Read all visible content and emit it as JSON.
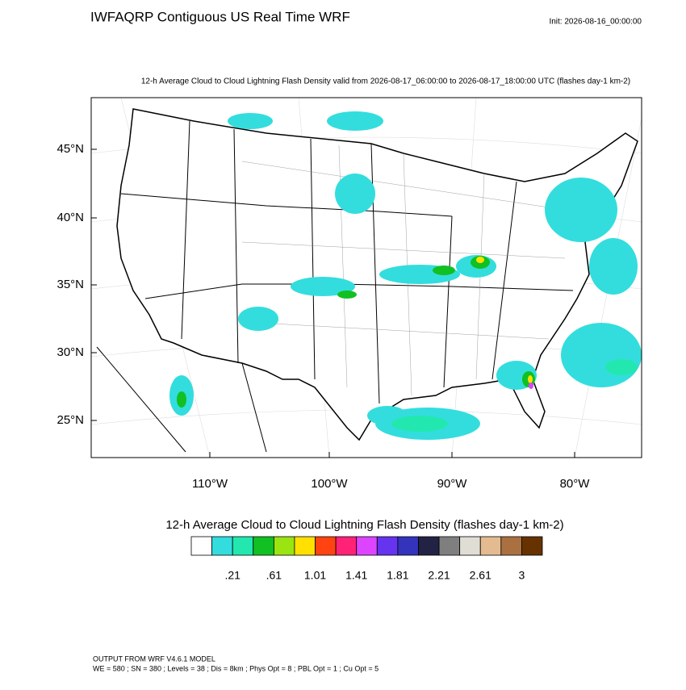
{
  "header": {
    "title": "IWFAQRP Contiguous US Real Time WRF",
    "init": "Init: 2026-08-16_00:00:00"
  },
  "map": {
    "subtitle": "12-h Average Cloud to Cloud Lightning Flash Density valid from 2026-08-17_06:00:00 to 2026-08-17_18:00:00 UTC   (flashes day-1 km-2)",
    "lat_labels": [
      "45°N",
      "40°N",
      "35°N",
      "30°N",
      "25°N"
    ],
    "lon_labels": [
      "110°W",
      "100°W",
      "90°W",
      "80°W"
    ]
  },
  "colorbar": {
    "title": "12-h Average Cloud to Cloud Lightning Flash Density  (flashes day-1 km-2)",
    "colors": [
      "#ffffff",
      "#33dddd",
      "#22e8b0",
      "#11c022",
      "#99e411",
      "#ffe000",
      "#ff4411",
      "#ff2277",
      "#dd44ff",
      "#6633ee",
      "#3333bb",
      "#222244",
      "#7f7f7f",
      "#e0ddd5",
      "#e4bb90",
      "#aa7040",
      "#663300"
    ],
    "labels": [
      ".21",
      ".61",
      "1.01",
      "1.41",
      "1.81",
      "2.21",
      "2.61",
      "3"
    ]
  },
  "footer": {
    "line1": "OUTPUT FROM WRF V4.6.1 MODEL",
    "line2": "WE = 580 ; SN = 380 ; Levels = 38 ; Dis = 8km ; Phys Opt = 8 ; PBL Opt = 1 ; Cu Opt = 5"
  }
}
